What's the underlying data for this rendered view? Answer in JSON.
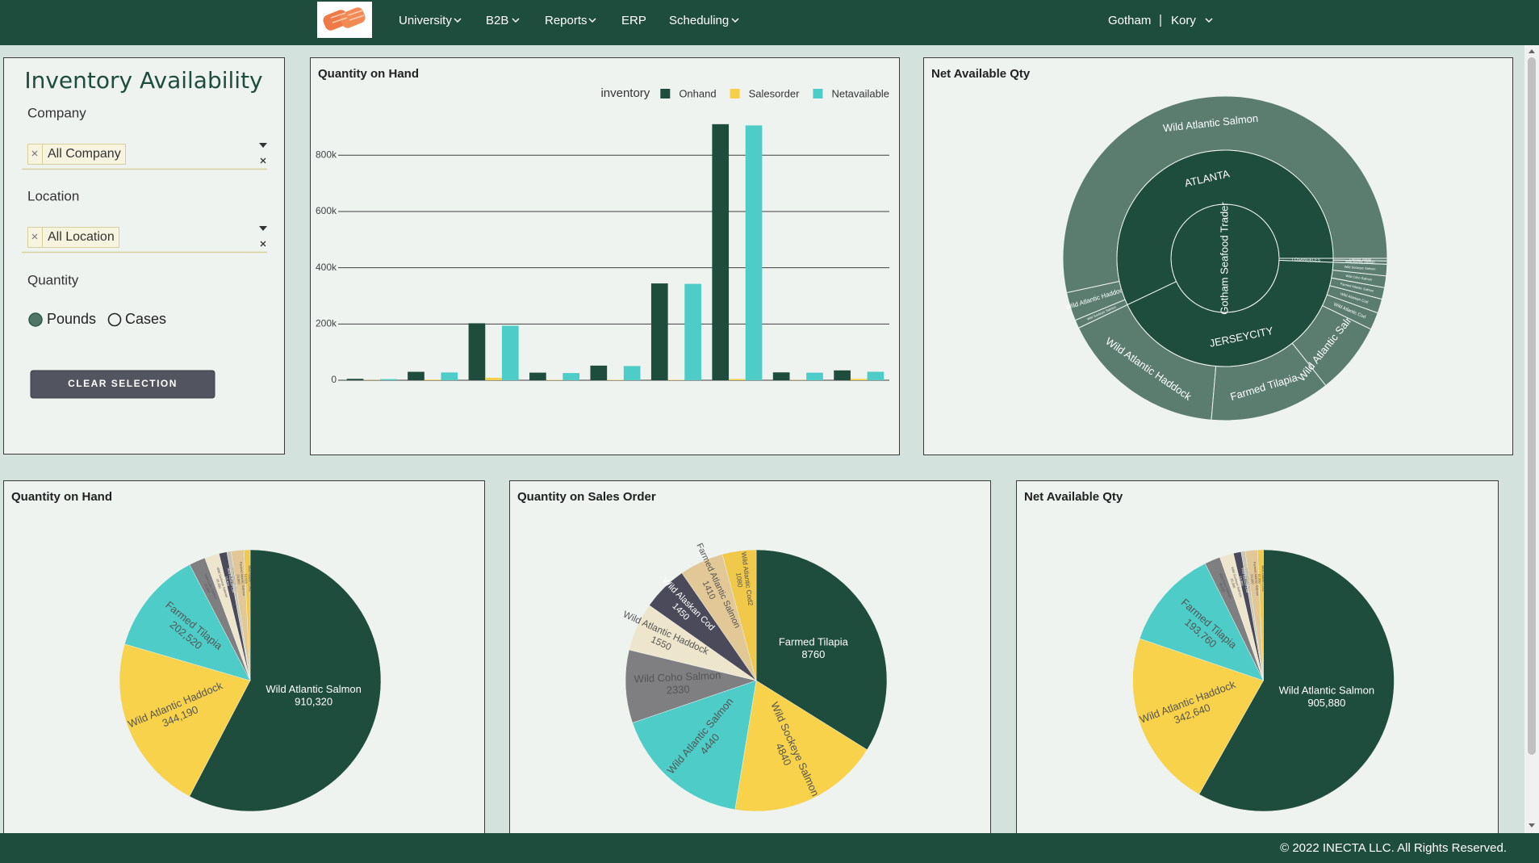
{
  "nav": {
    "items": [
      "University",
      "B2B",
      "Reports",
      "ERP",
      "Scheduling"
    ],
    "company": "Gotham",
    "user": "Kory"
  },
  "filters": {
    "title": "Inventory Availability",
    "company": {
      "label": "Company",
      "value": "All Company"
    },
    "location": {
      "label": "Location",
      "value": "All Location"
    },
    "quantity": {
      "label": "Quantity",
      "options": [
        "Pounds",
        "Cases"
      ]
    },
    "button": "CLEAR SELECTION"
  },
  "chart_data": [
    {
      "type": "bar",
      "title": "Quantity on Hand",
      "legend_title": "inventory",
      "legend": "top-right",
      "grid": true,
      "categories": [
        null,
        null,
        null,
        null,
        null,
        null,
        null,
        null,
        null
      ],
      "series": [
        {
          "name": "Onhand",
          "color": "#1f4d3d",
          "values": [
            5000,
            30000,
            202520,
            27000,
            52000,
            344190,
            910320,
            28000,
            35000
          ]
        },
        {
          "name": "Salesorder",
          "color": "#f5cf45",
          "values": [
            1000,
            2330,
            8760,
            1410,
            1450,
            1550,
            4440,
            1080,
            4840
          ]
        },
        {
          "name": "Netavailable",
          "color": "#4ecdc8",
          "values": [
            4000,
            27670,
            193760,
            25590,
            50550,
            342640,
            905880,
            26920,
            30160
          ]
        }
      ],
      "ylim": [
        0,
        950000
      ],
      "yticks": [
        0,
        {
          "value": 200000,
          "label": "200k"
        },
        {
          "value": 400000,
          "label": "400k"
        },
        {
          "value": 600000,
          "label": "600k"
        },
        {
          "value": 800000,
          "label": "800k"
        }
      ]
    },
    {
      "type": "sunburst",
      "title": "Net Available Qty",
      "root": "Gotham Seafood Trader",
      "colors": [
        "#1f4d3d",
        "#1f4d3d",
        "#5a7d70"
      ],
      "children": [
        {
          "name": "ATLANTA",
          "children": [
            {
              "name": "Wild Atlantic Salmon",
              "value": 831000
            },
            {
              "name": "Wild Atlantic Haddock",
              "value": 44000
            },
            {
              "name": "Wild Sockeye Salmon",
              "value": 13000
            }
          ]
        },
        {
          "name": "JERSEYCITY",
          "children": [
            {
              "name": "Wild Atlantic Haddock",
              "value": 258000
            },
            {
              "name": "Farmed Tilapia",
              "value": 187000
            },
            {
              "name": "Wild Atlantic Salmon",
              "value": 111000
            },
            {
              "name": "Wild Atlantic Cod",
              "value": 27000
            },
            {
              "name": "Wild Alaskan Cod",
              "value": 22000
            },
            {
              "name": "Farmed Atlantic Salmon",
              "value": 18000
            },
            {
              "name": "Wild Coho Salmon",
              "value": 18000
            },
            {
              "name": "Wild Sockeye Salmon",
              "value": 18000
            }
          ]
        },
        {
          "name": "LOSANGELES",
          "children": [
            {
              "name": "Wild Atlantic Salmon",
              "value": 5000
            },
            {
              "name": "Farmed Tilapia",
              "value": 4000
            }
          ]
        }
      ]
    },
    {
      "type": "pie",
      "title": "Quantity on Hand",
      "categories": [
        "Wild Atlantic Salmon",
        "Wild Atlantic Haddock",
        "Farmed Tilapia",
        "Wild Coho Salmon",
        "Wild Sockeye Salmon",
        "Wild Alaskan Cod",
        "Wild Atlantic Cod",
        "Farmed Atlantic Salmon",
        "Wild Atlantic Cod2"
      ],
      "values": [
        910320,
        344190,
        202520,
        31960,
        28480,
        15400,
        8200,
        24900,
        12020
      ],
      "value_labels": [
        "910,320",
        "344,190",
        "202,520",
        "31,960",
        "28,480",
        "15,400",
        "8,200",
        "24,900",
        "12,020"
      ],
      "colors": [
        "#1f4d3d",
        "#f7d24a",
        "#4ecdc8",
        "#7f7f82",
        "#eee6cc",
        "#4a4a5a",
        "#c9c4b4",
        "#e2c896",
        "#f0c84a"
      ]
    },
    {
      "type": "pie",
      "title": "Quantity on Sales Order",
      "categories": [
        "Farmed Tilapia",
        "Wild Sockeye Salmon",
        "Wild Atlantic Salmon",
        "Wild Coho Salmon",
        "Wild Atlantic Haddock",
        "Wild Alaskan Cod",
        "Farmed Atlantic Salmon",
        "Wild Atlantic Cod2"
      ],
      "values": [
        8760,
        4840,
        4440,
        2330,
        1550,
        1450,
        1410,
        1080
      ],
      "colors": [
        "#1f4d3d",
        "#f7d24a",
        "#4ecdc8",
        "#7f7f82",
        "#eee6cc",
        "#4a4a5a",
        "#e2c896",
        "#f0c84a"
      ]
    },
    {
      "type": "pie",
      "title": "Net Available Qty",
      "categories": [
        "Wild Atlantic Salmon",
        "Wild Atlantic Haddock",
        "Farmed Tilapia",
        "Wild Coho Salmon",
        "Wild Sockeye Salmon",
        "Wild Alaskan Cod",
        "Wild Atlantic Cod",
        "Farmed Atlantic Salmon",
        "Wild Atlantic Cod2"
      ],
      "values": [
        905880,
        342640,
        193760,
        30200,
        26900,
        14800,
        7900,
        23500,
        11200
      ],
      "value_labels": [
        "905,880",
        "342,640",
        "193,760",
        "30,200",
        "26,900",
        "14,800",
        "7,900",
        "23,500",
        "11,200"
      ],
      "colors": [
        "#1f4d3d",
        "#f7d24a",
        "#4ecdc8",
        "#7f7f82",
        "#eee6cc",
        "#4a4a5a",
        "#c9c4b4",
        "#e2c896",
        "#f0c84a"
      ]
    }
  ],
  "footer": "© 2022 INECTA LLC. All Rights Reserved."
}
